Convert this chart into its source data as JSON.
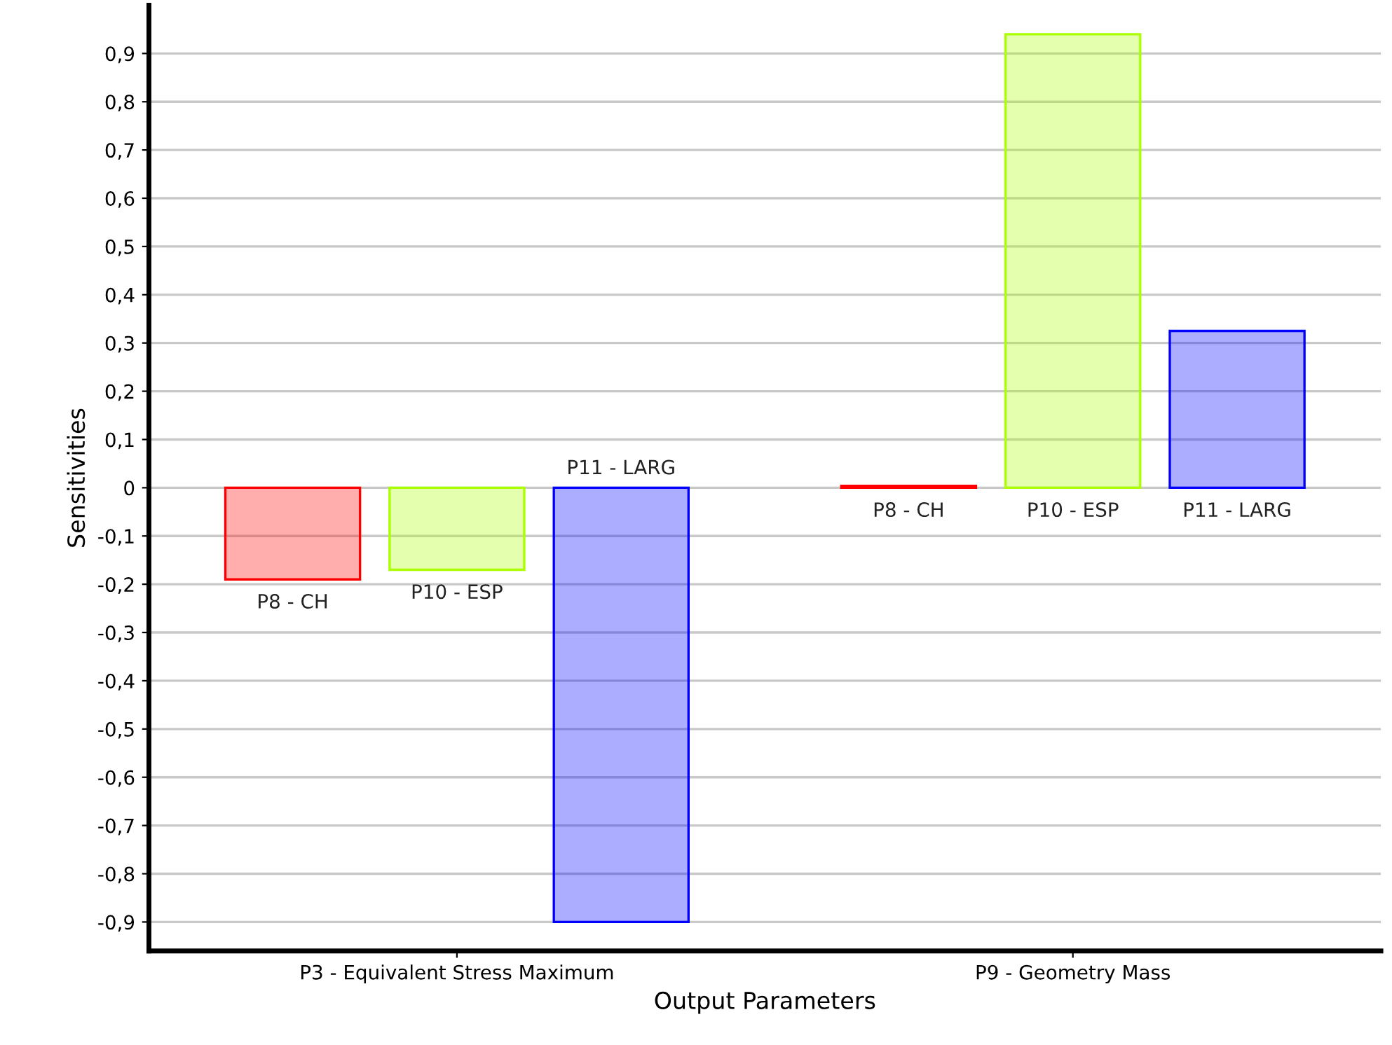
{
  "chart_data": {
    "type": "bar",
    "xlabel": "Output Parameters",
    "ylabel": "Sensitivities",
    "categories": [
      "P3 - Equivalent Stress Maximum",
      "P9 - Geometry Mass"
    ],
    "series": [
      {
        "name": "P8 - CH",
        "color": "#ff0000",
        "values": [
          -0.19,
          0.004
        ]
      },
      {
        "name": "P10 - ESP",
        "color": "#aaff00",
        "values": [
          -0.17,
          0.94
        ]
      },
      {
        "name": "P11 - LARG",
        "color": "#0000ff",
        "values": [
          -0.9,
          0.325
        ]
      }
    ],
    "ylim": [
      -0.96,
      1.0
    ],
    "yticks": [
      {
        "value": -0.9,
        "label": "-0,9"
      },
      {
        "value": -0.8,
        "label": "-0,8"
      },
      {
        "value": -0.7,
        "label": "-0,7"
      },
      {
        "value": -0.6,
        "label": "-0,6"
      },
      {
        "value": -0.5,
        "label": "-0,5"
      },
      {
        "value": -0.4,
        "label": "-0,4"
      },
      {
        "value": -0.3,
        "label": "-0,3"
      },
      {
        "value": -0.2,
        "label": "-0,2"
      },
      {
        "value": -0.1,
        "label": "-0,1"
      },
      {
        "value": 0,
        "label": "0"
      },
      {
        "value": 0.1,
        "label": "0,1"
      },
      {
        "value": 0.2,
        "label": "0,2"
      },
      {
        "value": 0.3,
        "label": "0,3"
      },
      {
        "value": 0.4,
        "label": "0,4"
      },
      {
        "value": 0.5,
        "label": "0,5"
      },
      {
        "value": 0.6,
        "label": "0,6"
      },
      {
        "value": 0.7,
        "label": "0,7"
      },
      {
        "value": 0.8,
        "label": "0,8"
      },
      {
        "value": 0.9,
        "label": "0,9"
      }
    ],
    "grid": "y",
    "legend": false
  }
}
